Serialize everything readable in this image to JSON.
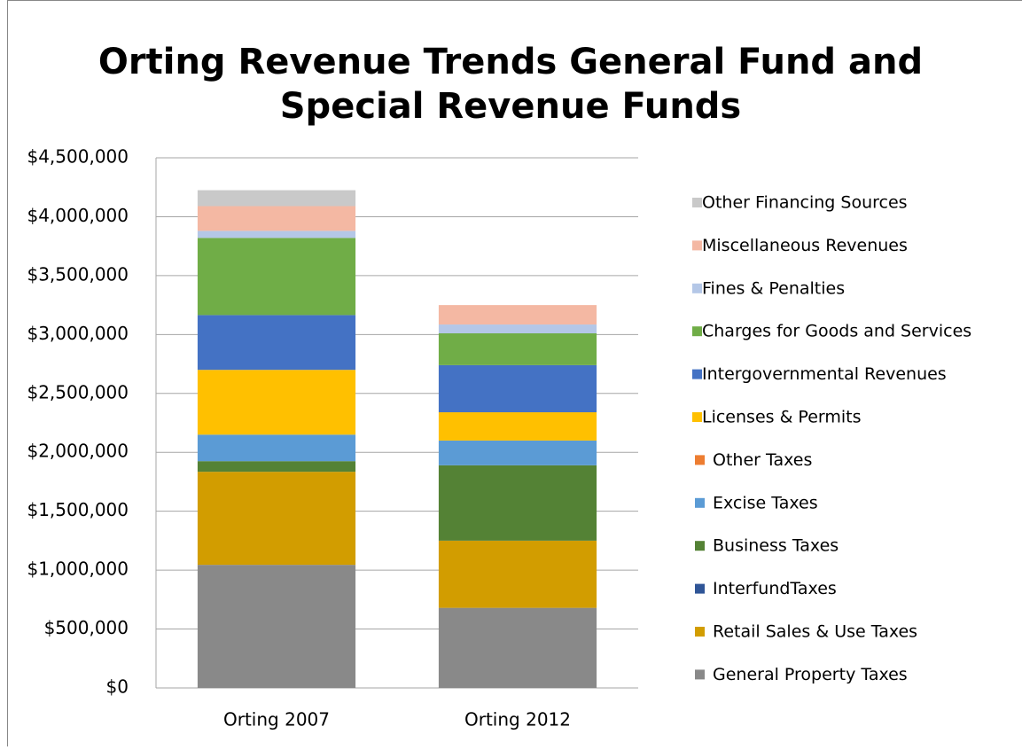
{
  "chart_data": {
    "type": "stacked_bar",
    "title": [
      "Orting Revenue Trends General Fund and",
      "Special Revenue Funds"
    ],
    "categories": [
      "Orting 2007",
      "Orting 2012"
    ],
    "series": [
      {
        "name": "General Property Taxes",
        "color": "#898989",
        "values": [
          1045000,
          680000
        ]
      },
      {
        "name": "Retail Sales & Use Taxes",
        "color": "#d29d00",
        "values": [
          790000,
          570000
        ]
      },
      {
        "name": "InterfundTaxes",
        "color": "#2f5597",
        "values": [
          0,
          0
        ]
      },
      {
        "name": "Business Taxes",
        "color": "#548235",
        "values": [
          90000,
          640000
        ]
      },
      {
        "name": "Excise Taxes",
        "color": "#5b9bd5",
        "values": [
          225000,
          210000
        ]
      },
      {
        "name": "Other Taxes",
        "color": "#ed7d31",
        "values": [
          0,
          0
        ]
      },
      {
        "name": "Licenses & Permits",
        "color": "#ffc000",
        "values": [
          550000,
          240000
        ]
      },
      {
        "name": "Intergovernmental Revenues",
        "color": "#4472c4",
        "values": [
          465000,
          400000
        ]
      },
      {
        "name": "Charges for Goods and Services",
        "color": "#70ad47",
        "values": [
          655000,
          270000
        ]
      },
      {
        "name": "Fines & Penalties",
        "color": "#b4c7e7",
        "values": [
          60000,
          75000
        ]
      },
      {
        "name": "Miscellaneous Revenues",
        "color": "#f4b8a3",
        "values": [
          210000,
          165000
        ]
      },
      {
        "name": "Other Financing Sources",
        "color": "#c9c9c9",
        "values": [
          135000,
          0
        ]
      }
    ],
    "ylim": [
      0,
      4500000
    ],
    "yticks": [
      {
        "value": 0,
        "label": "$0"
      },
      {
        "value": 500000,
        "label": "$500,000"
      },
      {
        "value": 1000000,
        "label": "$1,000,000"
      },
      {
        "value": 1500000,
        "label": "$1,500,000"
      },
      {
        "value": 2000000,
        "label": "$2,000,000"
      },
      {
        "value": 2500000,
        "label": "$2,500,000"
      },
      {
        "value": 3000000,
        "label": "$3,000,000"
      },
      {
        "value": 3500000,
        "label": "$3,500,000"
      },
      {
        "value": 4000000,
        "label": "$4,000,000"
      },
      {
        "value": 4500000,
        "label": "$4,500,000"
      }
    ],
    "grid": true,
    "legend": "right"
  }
}
